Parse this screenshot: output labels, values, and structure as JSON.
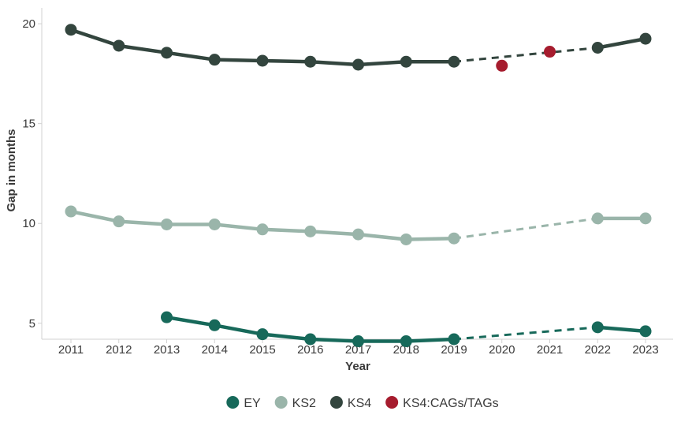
{
  "chart_data": {
    "type": "line",
    "title": "",
    "xlabel": "Year",
    "ylabel": "Gap in months",
    "x": [
      2011,
      2012,
      2013,
      2014,
      2015,
      2016,
      2017,
      2018,
      2019,
      2020,
      2021,
      2022,
      2023
    ],
    "x_tick_labels": [
      "2011",
      "2012",
      "2013",
      "2014",
      "2015",
      "2016",
      "2017",
      "2018",
      "2019",
      "2020",
      "2021",
      "2022",
      "2023"
    ],
    "ylim": [
      4.2,
      20.4
    ],
    "y_ticks": [
      5,
      10,
      15,
      20
    ],
    "y_tick_labels": [
      "5",
      "10",
      "15",
      "20"
    ],
    "grid": false,
    "legend_position": "bottom",
    "series": [
      {
        "name": "EY",
        "color": "#17695a",
        "x": [
          2013,
          2014,
          2015,
          2016,
          2017,
          2018,
          2019,
          2022,
          2023
        ],
        "values": [
          5.3,
          4.9,
          4.45,
          4.2,
          4.1,
          4.1,
          4.2,
          4.8,
          4.6
        ],
        "gap_after": 2019
      },
      {
        "name": "KS2",
        "color": "#9ab5aa",
        "x": [
          2011,
          2012,
          2013,
          2014,
          2015,
          2016,
          2017,
          2018,
          2019,
          2022,
          2023
        ],
        "values": [
          10.6,
          10.1,
          9.95,
          9.95,
          9.7,
          9.6,
          9.45,
          9.2,
          9.25,
          10.25,
          10.25
        ],
        "gap_after": 2019
      },
      {
        "name": "KS4",
        "color": "#33453e",
        "x": [
          2011,
          2012,
          2013,
          2014,
          2015,
          2016,
          2017,
          2018,
          2019,
          2022,
          2023
        ],
        "values": [
          19.7,
          18.9,
          18.55,
          18.2,
          18.15,
          18.1,
          17.95,
          18.1,
          18.1,
          18.8,
          19.25
        ],
        "gap_after": 2019
      },
      {
        "name": "KS4:CAGs/TAGs",
        "color": "#a61c2e",
        "x": [
          2020,
          2021
        ],
        "values": [
          17.9,
          18.6
        ],
        "markers_only": true
      }
    ]
  }
}
